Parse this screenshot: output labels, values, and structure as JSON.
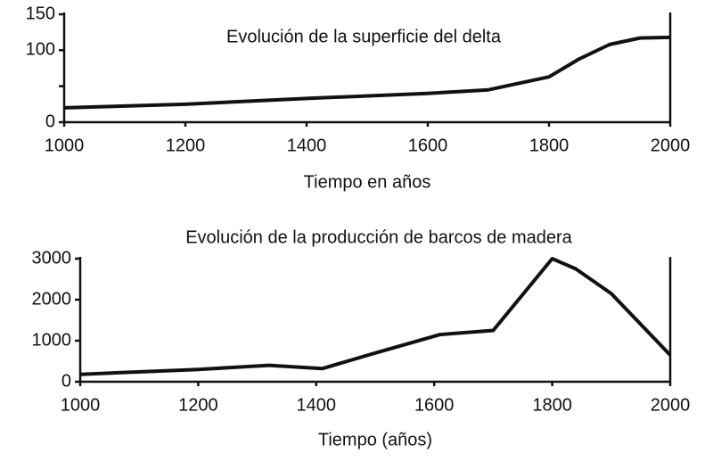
{
  "chart_data": [
    {
      "type": "line",
      "title": "Evolución de la superficie del delta",
      "x_label": "Tiempo en años",
      "x": [
        1000,
        1200,
        1400,
        1600,
        1700,
        1800,
        1850,
        1900,
        1950,
        2000
      ],
      "values": [
        20,
        25,
        33,
        40,
        45,
        63,
        88,
        108,
        117,
        118
      ],
      "color": "#111111",
      "xlim": [
        1000,
        2000
      ],
      "xticks": [
        1000,
        1200,
        1400,
        1600,
        1800,
        2000
      ],
      "ylim": [
        0,
        150
      ],
      "yticks": [
        0,
        100,
        150
      ],
      "minor_yticks": [
        50
      ]
    },
    {
      "type": "line",
      "title": "Evolución de la producción de barcos de madera",
      "x_label": "Tiempo (años)",
      "x": [
        1000,
        1200,
        1320,
        1410,
        1500,
        1610,
        1700,
        1800,
        1840,
        1900,
        2000
      ],
      "values": [
        180,
        300,
        400,
        320,
        700,
        1150,
        1250,
        3000,
        2750,
        2150,
        650
      ],
      "color": "#111111",
      "xlim": [
        1000,
        2000
      ],
      "xticks": [
        1000,
        1200,
        1400,
        1600,
        1800,
        2000
      ],
      "ylim": [
        0,
        3000
      ],
      "yticks": [
        0,
        1000,
        2000,
        3000
      ]
    }
  ]
}
